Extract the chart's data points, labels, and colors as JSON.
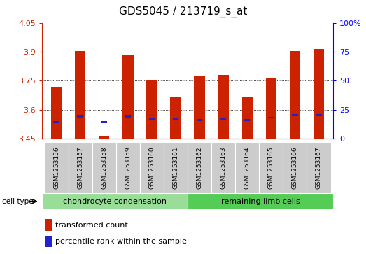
{
  "title": "GDS5045 / 213719_s_at",
  "samples": [
    "GSM1253156",
    "GSM1253157",
    "GSM1253158",
    "GSM1253159",
    "GSM1253160",
    "GSM1253161",
    "GSM1253162",
    "GSM1253163",
    "GSM1253164",
    "GSM1253165",
    "GSM1253166",
    "GSM1253167"
  ],
  "red_values": [
    3.72,
    3.905,
    3.465,
    3.885,
    3.75,
    3.665,
    3.775,
    3.78,
    3.665,
    3.765,
    3.905,
    3.915
  ],
  "blue_values": [
    3.535,
    3.563,
    3.535,
    3.563,
    3.553,
    3.553,
    3.545,
    3.553,
    3.545,
    3.558,
    3.572,
    3.572
  ],
  "ymin": 3.45,
  "ymax": 4.05,
  "yticks": [
    3.45,
    3.6,
    3.75,
    3.9,
    4.05
  ],
  "ytick_labels": [
    "3.45",
    "3.6",
    "3.75",
    "3.9",
    "4.05"
  ],
  "grid_lines": [
    3.6,
    3.75,
    3.9
  ],
  "right_yticks": [
    0,
    25,
    50,
    75,
    100
  ],
  "right_ytick_labels": [
    "0",
    "25",
    "50",
    "75",
    "100%"
  ],
  "group1_label": "chondrocyte condensation",
  "group2_label": "remaining limb cells",
  "cell_type_label": "cell type",
  "legend1": "transformed count",
  "legend2": "percentile rank within the sample",
  "bar_color": "#cc2200",
  "blue_color": "#2222cc",
  "group1_bg": "#99dd99",
  "group2_bg": "#55cc55",
  "label_bg": "#cccccc",
  "plot_bg": "#ffffff",
  "title_fontsize": 11,
  "bar_width": 0.45
}
